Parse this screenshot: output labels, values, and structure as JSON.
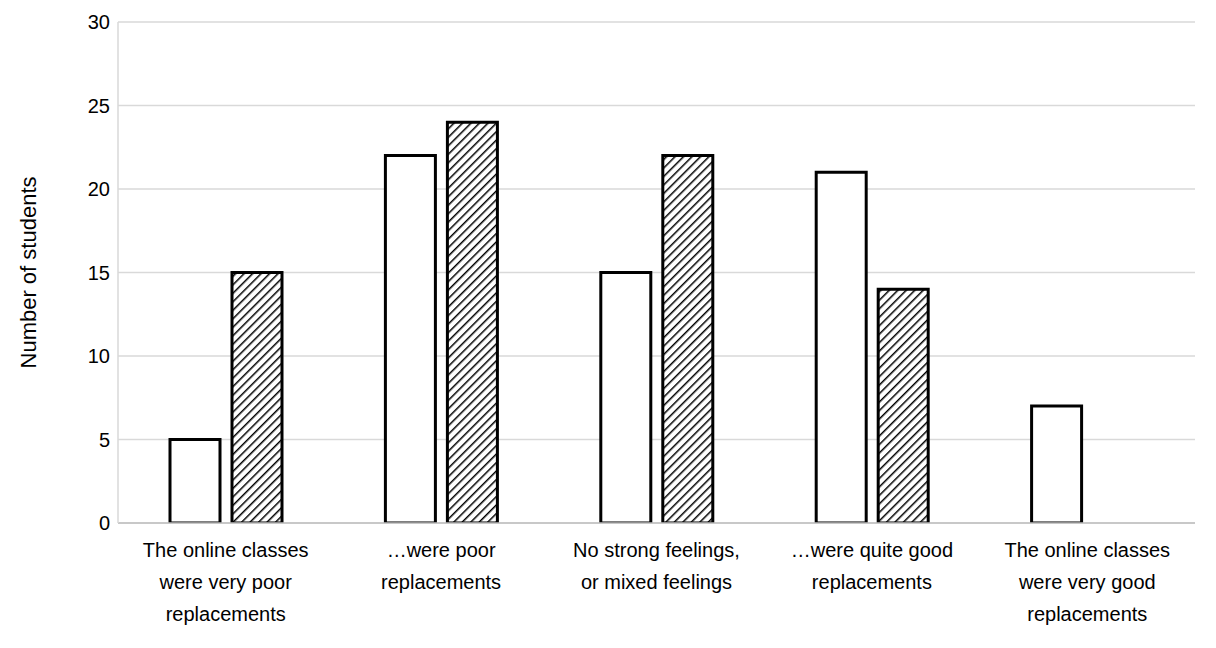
{
  "chart_data": {
    "type": "bar",
    "y_label": "Number of students",
    "categories": [
      "The online classes were very poor replacements",
      "…were poor replacements",
      "No strong feelings, or mixed feelings",
      "…were quite good replacements",
      "The online classes were very good replacements"
    ],
    "series": [
      {
        "color": "#ffffff",
        "values": [
          5,
          22,
          15,
          21,
          7
        ]
      },
      {
        "color": "#000000",
        "values": [
          15,
          24,
          22,
          14,
          0
        ]
      }
    ],
    "ylim": [
      0,
      30
    ],
    "yticks": [
      0,
      5,
      10,
      15,
      20,
      25,
      30
    ],
    "grid": true
  }
}
